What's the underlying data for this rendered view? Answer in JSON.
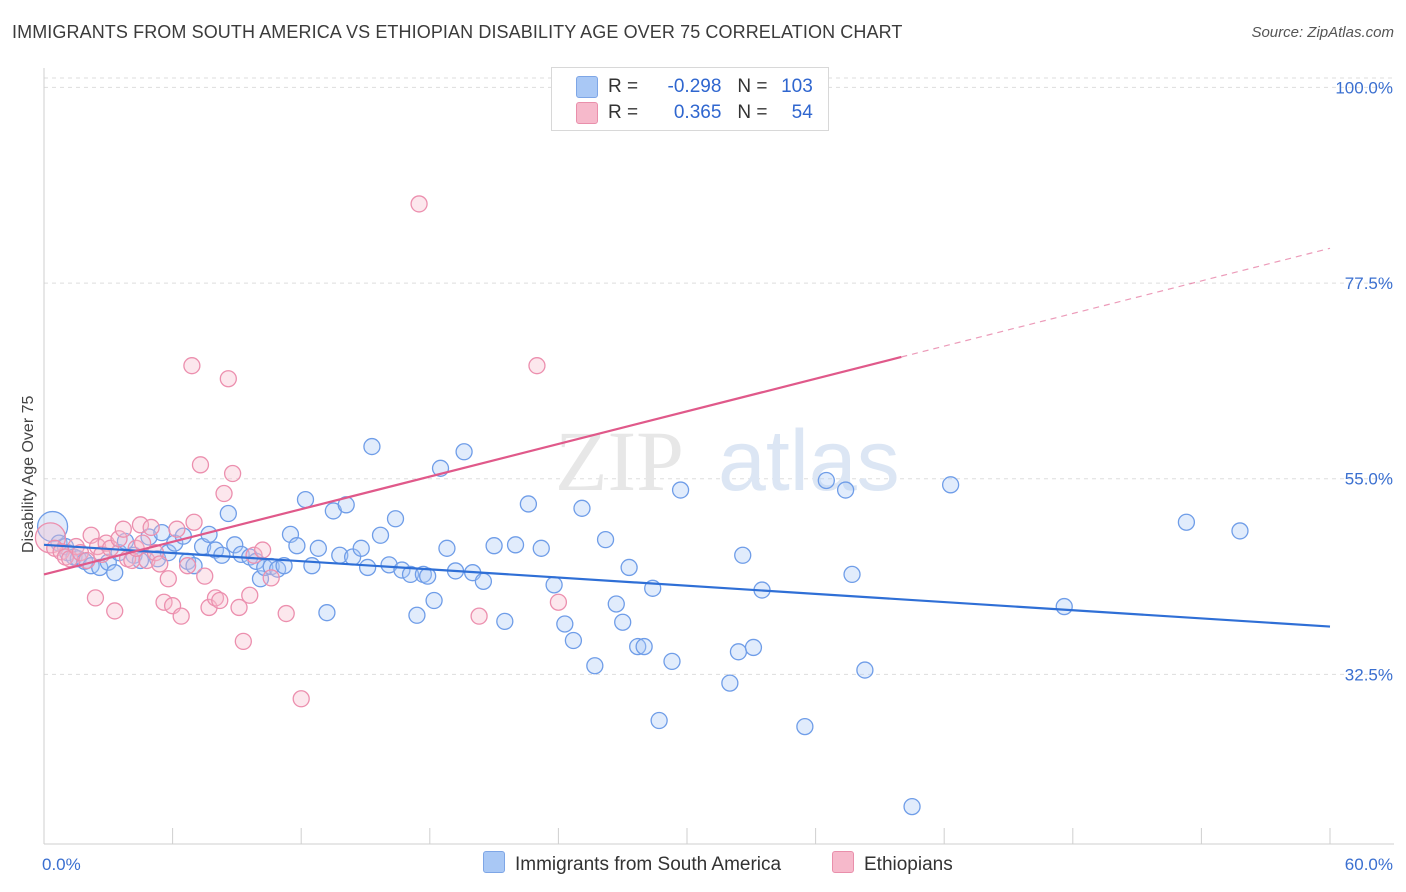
{
  "title": "IMMIGRANTS FROM SOUTH AMERICA VS ETHIOPIAN DISABILITY AGE OVER 75 CORRELATION CHART",
  "source": "Source: ZipAtlas.com",
  "watermark": {
    "zip": "ZIP",
    "atlas": "atlas"
  },
  "legend": {
    "rows": [
      {
        "r_label": "R =",
        "r_value": "-0.298",
        "n_label": "N =",
        "n_value": "103",
        "color": "#a9c8f5",
        "border": "#7ea6e6"
      },
      {
        "r_label": "R =",
        "r_value": "0.365",
        "n_label": "N =",
        "n_value": "54",
        "color": "#f6b9cb",
        "border": "#e98fab"
      }
    ]
  },
  "bottom_legend": {
    "blue": "Immigrants from South America",
    "pink": "Ethiopians"
  },
  "chart_data": {
    "type": "scatter",
    "title": "IMMIGRANTS FROM SOUTH AMERICA VS ETHIOPIAN DISABILITY AGE OVER 75 CORRELATION CHART",
    "xlabel": "",
    "ylabel": "Disability Age Over 75",
    "xlim": [
      0,
      60
    ],
    "ylim": [
      13,
      102
    ],
    "x_tick_labels": [
      "0.0%",
      "60.0%"
    ],
    "y_ticks": [
      32.5,
      55.0,
      77.5,
      100.0
    ],
    "y_tick_labels": [
      "32.5%",
      "55.0%",
      "77.5%",
      "100.0%"
    ],
    "grid": "horizontal dashed",
    "legend_position": "top-center",
    "series": [
      {
        "name": "Immigrants from South America",
        "color": "#6f9de8",
        "trend": {
          "x": [
            0,
            60
          ],
          "y": [
            47.4,
            38.0
          ],
          "color": "#2f6fd6"
        },
        "points": [
          [
            0.4,
            49.5
          ],
          [
            0.7,
            47.6
          ],
          [
            1.0,
            47.2
          ],
          [
            1.1,
            46.5
          ],
          [
            1.4,
            46.0
          ],
          [
            1.6,
            45.8
          ],
          [
            1.9,
            45.5
          ],
          [
            2.2,
            45.0
          ],
          [
            2.6,
            44.8
          ],
          [
            3.0,
            45.4
          ],
          [
            3.3,
            44.2
          ],
          [
            3.5,
            46.5
          ],
          [
            3.8,
            47.8
          ],
          [
            4.2,
            46.2
          ],
          [
            4.5,
            45.6
          ],
          [
            4.9,
            48.3
          ],
          [
            5.3,
            45.8
          ],
          [
            5.5,
            48.8
          ],
          [
            5.8,
            46.5
          ],
          [
            6.1,
            47.6
          ],
          [
            6.5,
            48.4
          ],
          [
            6.7,
            45.5
          ],
          [
            7.0,
            45.0
          ],
          [
            7.4,
            47.2
          ],
          [
            7.7,
            48.6
          ],
          [
            8.0,
            46.8
          ],
          [
            8.3,
            46.2
          ],
          [
            8.6,
            51.0
          ],
          [
            8.9,
            47.4
          ],
          [
            9.2,
            46.3
          ],
          [
            9.6,
            46.0
          ],
          [
            9.9,
            45.5
          ],
          [
            10.1,
            43.5
          ],
          [
            10.3,
            44.8
          ],
          [
            10.6,
            44.9
          ],
          [
            10.9,
            44.6
          ],
          [
            11.2,
            45.0
          ],
          [
            11.5,
            48.6
          ],
          [
            11.8,
            47.3
          ],
          [
            12.2,
            52.6
          ],
          [
            12.5,
            45.0
          ],
          [
            12.8,
            47.0
          ],
          [
            13.2,
            39.6
          ],
          [
            13.5,
            51.3
          ],
          [
            13.8,
            46.2
          ],
          [
            14.1,
            52.0
          ],
          [
            14.4,
            46.0
          ],
          [
            14.8,
            47.0
          ],
          [
            15.1,
            44.8
          ],
          [
            15.3,
            58.7
          ],
          [
            15.7,
            48.5
          ],
          [
            16.1,
            45.1
          ],
          [
            16.4,
            50.4
          ],
          [
            16.7,
            44.5
          ],
          [
            17.1,
            44.0
          ],
          [
            17.4,
            39.3
          ],
          [
            17.7,
            44.0
          ],
          [
            17.9,
            43.8
          ],
          [
            18.2,
            41.0
          ],
          [
            18.5,
            56.2
          ],
          [
            18.8,
            47.0
          ],
          [
            19.2,
            44.4
          ],
          [
            19.6,
            58.1
          ],
          [
            20.0,
            44.2
          ],
          [
            20.5,
            43.2
          ],
          [
            21.0,
            47.3
          ],
          [
            21.5,
            38.6
          ],
          [
            22.0,
            47.4
          ],
          [
            22.6,
            52.1
          ],
          [
            23.2,
            47.0
          ],
          [
            23.8,
            42.8
          ],
          [
            24.3,
            38.3
          ],
          [
            24.7,
            36.4
          ],
          [
            25.1,
            51.6
          ],
          [
            25.7,
            33.5
          ],
          [
            26.2,
            48.0
          ],
          [
            26.7,
            40.6
          ],
          [
            27.0,
            38.5
          ],
          [
            27.3,
            44.8
          ],
          [
            27.7,
            35.7
          ],
          [
            28.0,
            35.7
          ],
          [
            28.4,
            42.4
          ],
          [
            28.7,
            27.2
          ],
          [
            29.3,
            34.0
          ],
          [
            29.7,
            53.7
          ],
          [
            32.0,
            31.5
          ],
          [
            32.4,
            35.1
          ],
          [
            32.6,
            46.2
          ],
          [
            33.1,
            35.6
          ],
          [
            33.5,
            42.2
          ],
          [
            35.5,
            26.5
          ],
          [
            36.5,
            54.8
          ],
          [
            37.4,
            53.7
          ],
          [
            37.7,
            44.0
          ],
          [
            38.3,
            33.0
          ],
          [
            40.5,
            17.3
          ],
          [
            42.3,
            54.3
          ],
          [
            47.6,
            40.3
          ],
          [
            53.3,
            50.0
          ],
          [
            55.8,
            49.0
          ]
        ]
      },
      {
        "name": "Ethiopians",
        "color": "#f09ab5",
        "trend": {
          "x": [
            0,
            40
          ],
          "y": [
            44.0,
            69.0
          ],
          "dashed_to": {
            "x": 60,
            "y": 81.5
          },
          "color": "#e0598a"
        },
        "points": [
          [
            0.3,
            48.2
          ],
          [
            0.5,
            47.0
          ],
          [
            0.8,
            46.6
          ],
          [
            1.0,
            46.0
          ],
          [
            1.2,
            45.8
          ],
          [
            1.5,
            47.2
          ],
          [
            1.7,
            46.5
          ],
          [
            2.0,
            45.6
          ],
          [
            2.2,
            48.5
          ],
          [
            2.4,
            41.3
          ],
          [
            2.5,
            47.2
          ],
          [
            2.7,
            46.3
          ],
          [
            2.9,
            47.6
          ],
          [
            3.1,
            47.0
          ],
          [
            3.3,
            39.8
          ],
          [
            3.5,
            48.1
          ],
          [
            3.7,
            49.2
          ],
          [
            3.9,
            45.8
          ],
          [
            4.1,
            45.6
          ],
          [
            4.3,
            47.0
          ],
          [
            4.5,
            49.7
          ],
          [
            4.6,
            47.6
          ],
          [
            4.8,
            45.6
          ],
          [
            5.0,
            49.4
          ],
          [
            5.2,
            46.5
          ],
          [
            5.4,
            45.2
          ],
          [
            5.6,
            40.8
          ],
          [
            5.8,
            43.5
          ],
          [
            6.0,
            40.4
          ],
          [
            6.2,
            49.2
          ],
          [
            6.4,
            39.2
          ],
          [
            6.7,
            45.0
          ],
          [
            6.9,
            68.0
          ],
          [
            7.0,
            50.0
          ],
          [
            7.3,
            56.6
          ],
          [
            7.5,
            43.8
          ],
          [
            7.7,
            40.2
          ],
          [
            8.0,
            41.3
          ],
          [
            8.2,
            41.0
          ],
          [
            8.4,
            53.3
          ],
          [
            8.6,
            66.5
          ],
          [
            8.8,
            55.6
          ],
          [
            9.1,
            40.2
          ],
          [
            9.3,
            36.3
          ],
          [
            9.6,
            41.6
          ],
          [
            9.8,
            46.2
          ],
          [
            10.2,
            46.8
          ],
          [
            10.6,
            43.6
          ],
          [
            11.3,
            39.5
          ],
          [
            12.0,
            29.7
          ],
          [
            17.5,
            86.6
          ],
          [
            20.3,
            39.2
          ],
          [
            23.0,
            68.0
          ],
          [
            24.0,
            40.8
          ]
        ]
      }
    ]
  }
}
